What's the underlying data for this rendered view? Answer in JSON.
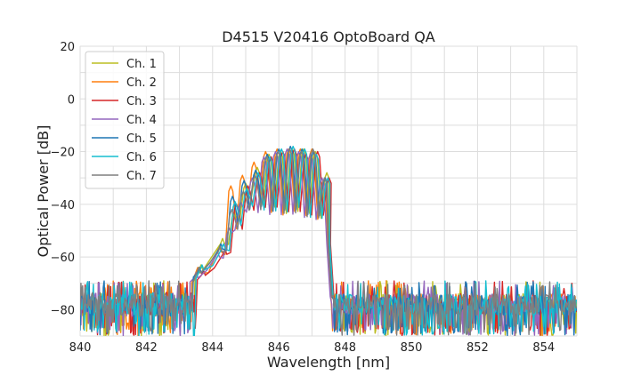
{
  "chart_data": {
    "type": "line",
    "title": "D4515 V20416 OptoBoard QA",
    "xlabel": "Wavelength [nm]",
    "ylabel": "Optical Power [dB]",
    "xlim": [
      840,
      855
    ],
    "ylim": [
      -90,
      20
    ],
    "xticks": [
      "840",
      "842",
      "844",
      "846",
      "848",
      "850",
      "852",
      "854"
    ],
    "yticks": [
      "20",
      "0",
      "−20",
      "−40",
      "−60",
      "−80"
    ],
    "grid": true,
    "legend_position": "top-left",
    "series": [
      {
        "name": "Ch. 1",
        "color": "#bcbd22",
        "shift": 0.05,
        "x": [
          843.6,
          844.25,
          844.6,
          844.95,
          845.3,
          845.65,
          846.0,
          846.35,
          846.7,
          847.05,
          847.4
        ],
        "peaks": [
          -63,
          -53,
          -43,
          -32,
          -26,
          -21,
          -20,
          -19,
          -19,
          -20,
          -28
        ],
        "dips": [
          -67,
          -60,
          -55,
          -45,
          -38,
          -40,
          -42,
          -43,
          -42,
          -44,
          -45
        ]
      },
      {
        "name": "Ch. 2",
        "color": "#ff7f0e",
        "shift": -0.05,
        "x": [
          843.6,
          844.25,
          844.6,
          844.95,
          845.3,
          845.65,
          846.0,
          846.35,
          846.7,
          847.05,
          847.4
        ],
        "peaks": [
          -64,
          -56,
          -33,
          -29,
          -24,
          -20,
          -19,
          -19,
          -19,
          -19,
          -31
        ],
        "dips": [
          -70,
          -66,
          -59,
          -49,
          -40,
          -41,
          -43,
          -44,
          -43,
          -45,
          -46
        ]
      },
      {
        "name": "Ch. 3",
        "color": "#d62728",
        "shift": 0.12,
        "x": [
          843.6,
          844.25,
          844.6,
          844.95,
          845.3,
          845.65,
          846.0,
          846.35,
          846.7,
          847.05,
          847.4
        ],
        "peaks": [
          -65,
          -57,
          -40,
          -33,
          -28,
          -22,
          -20,
          -19,
          -21,
          -20,
          -30
        ],
        "dips": [
          -69,
          -64,
          -58,
          -50,
          -42,
          -42,
          -42,
          -43,
          -43,
          -44,
          -45
        ]
      },
      {
        "name": "Ch. 4",
        "color": "#9467bd",
        "shift": -0.1,
        "x": [
          843.6,
          844.25,
          844.6,
          844.95,
          845.3,
          845.65,
          846.0,
          846.35,
          846.7,
          847.05,
          847.4
        ],
        "peaks": [
          -66,
          -58,
          -49,
          -39,
          -30,
          -22,
          -20,
          -19,
          -20,
          -21,
          -30
        ],
        "dips": [
          -70,
          -65,
          -60,
          -50,
          -43,
          -43,
          -43,
          -44,
          -43,
          -45,
          -46
        ]
      },
      {
        "name": "Ch. 5",
        "color": "#1f77b4",
        "shift": 0.0,
        "x": [
          843.6,
          844.25,
          844.6,
          844.95,
          845.3,
          845.65,
          846.0,
          846.35,
          846.7,
          847.05,
          847.4
        ],
        "peaks": [
          -64,
          -55,
          -37,
          -31,
          -27,
          -21,
          -19,
          -18,
          -19,
          -20,
          -30
        ],
        "dips": [
          -68,
          -62,
          -57,
          -48,
          -41,
          -41,
          -42,
          -43,
          -42,
          -44,
          -45
        ]
      },
      {
        "name": "Ch. 6",
        "color": "#17becf",
        "shift": 0.08,
        "x": [
          843.6,
          844.25,
          844.6,
          844.95,
          845.3,
          845.65,
          846.0,
          846.35,
          846.7,
          847.05,
          847.4
        ],
        "peaks": [
          -63,
          -55,
          -39,
          -34,
          -28,
          -22,
          -19,
          -18,
          -19,
          -21,
          -30
        ],
        "dips": [
          -68,
          -63,
          -58,
          -49,
          -41,
          -42,
          -42,
          -43,
          -42,
          -44,
          -45
        ]
      },
      {
        "name": "Ch. 7",
        "color": "#7f7f7f",
        "shift": -0.02,
        "x": [
          843.6,
          844.25,
          844.6,
          844.95,
          845.3,
          845.65,
          846.0,
          846.35,
          846.7,
          847.05,
          847.4
        ],
        "peaks": [
          -64,
          -56,
          -42,
          -35,
          -29,
          -22,
          -20,
          -19,
          -20,
          -19,
          -30
        ],
        "dips": [
          -69,
          -63,
          -58,
          -49,
          -42,
          -42,
          -42,
          -43,
          -43,
          -44,
          -45
        ]
      }
    ],
    "noise_floor": {
      "level": -78,
      "range": [
        -90,
        -72
      ],
      "spectrum_start": 843.4,
      "spectrum_end": 847.55
    }
  }
}
